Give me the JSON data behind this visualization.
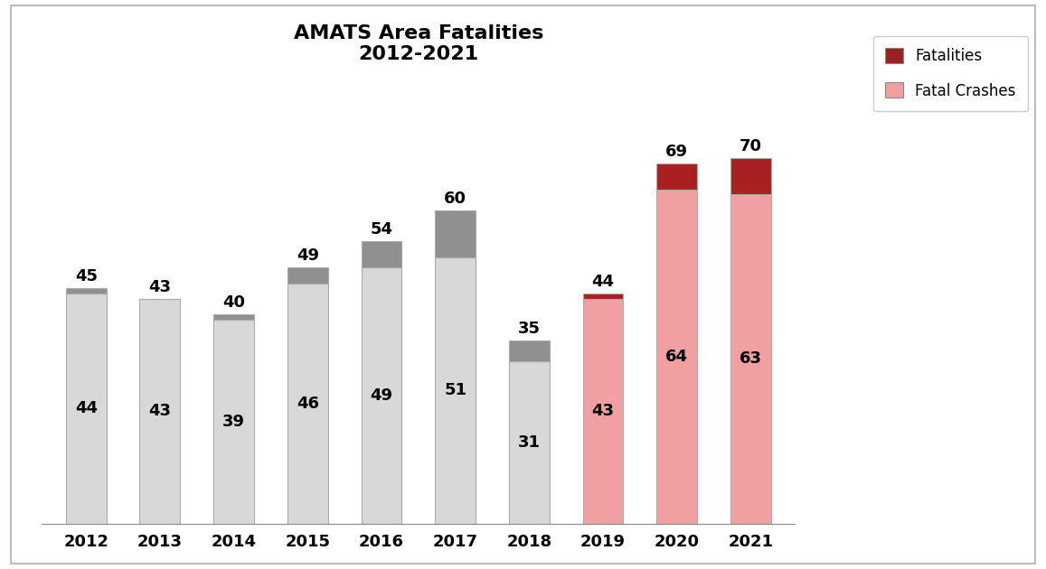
{
  "years": [
    "2012",
    "2013",
    "2014",
    "2015",
    "2016",
    "2017",
    "2018",
    "2019",
    "2020",
    "2021"
  ],
  "fatal_crashes": [
    44,
    43,
    39,
    46,
    49,
    51,
    31,
    43,
    64,
    63
  ],
  "fatalities": [
    45,
    43,
    40,
    49,
    54,
    60,
    35,
    44,
    69,
    70
  ],
  "bar_colors_body_gray": "#d8d8d8",
  "bar_colors_cap_gray": "#909090",
  "bar_colors_body_pink": "#f0a0a0",
  "bar_colors_cap_red": "#a82020",
  "bar_colors_body_2019": "#f0a0a0",
  "legend_fatalities_color": "#9b2020",
  "legend_crashes_color": "#f0a0a0",
  "title_line1": "AMATS Area Fatalities",
  "title_line2": "2012-2021",
  "legend_fatalities_label": "Fatalities",
  "legend_crashes_label": "Fatal Crashes",
  "background_color": "#ffffff",
  "outer_border_color": "#bbbbbb",
  "title_fontsize": 16,
  "label_fontsize": 13,
  "tick_fontsize": 13,
  "legend_fontsize": 12,
  "gray_years_count": 7,
  "ylim_max": 85
}
